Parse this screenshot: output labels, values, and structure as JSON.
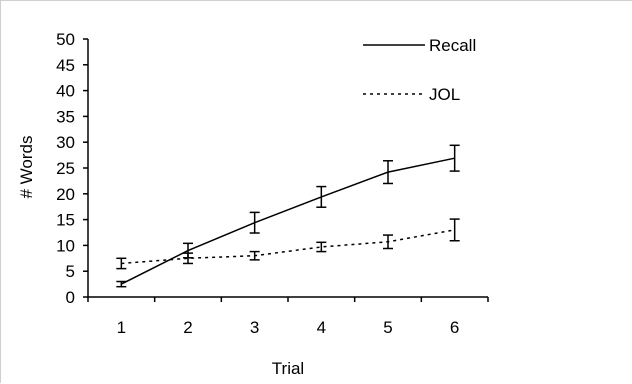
{
  "chart_data": {
    "type": "line",
    "title": "",
    "xlabel": "Trial",
    "ylabel": "# Words",
    "x": [
      1,
      2,
      3,
      4,
      5,
      6
    ],
    "xlim": [
      0.5,
      6.5
    ],
    "ylim": [
      0,
      50
    ],
    "yticks": [
      0,
      5,
      10,
      15,
      20,
      25,
      30,
      35,
      40,
      45,
      50
    ],
    "grid": false,
    "legend_position": "top-right",
    "series": [
      {
        "name": "Recall",
        "style": "solid",
        "color": "#000000",
        "values": [
          2.5,
          9.0,
          14.4,
          19.4,
          24.2,
          26.9
        ],
        "errors": [
          0.5,
          1.4,
          2.0,
          2.0,
          2.2,
          2.5
        ]
      },
      {
        "name": "JOL",
        "style": "dotted",
        "color": "#000000",
        "values": [
          6.5,
          7.5,
          8.0,
          9.7,
          10.7,
          13.0
        ],
        "errors": [
          1.0,
          1.0,
          0.8,
          0.9,
          1.3,
          2.1
        ]
      }
    ]
  }
}
